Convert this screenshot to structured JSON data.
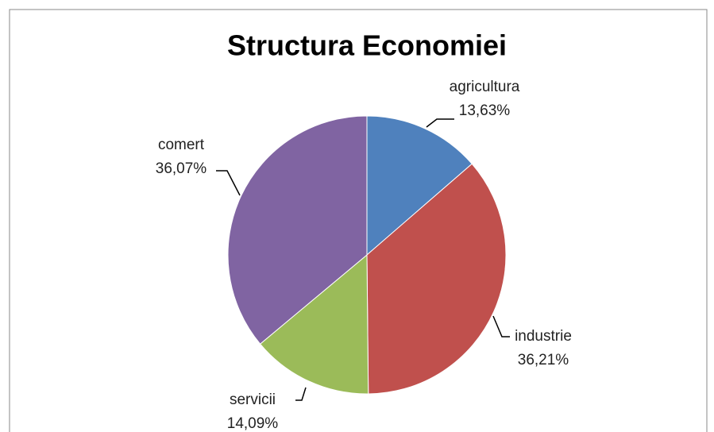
{
  "chart_data": {
    "type": "pie",
    "title": "Structura Economiei",
    "categories": [
      "agricultura",
      "industrie",
      "servicii",
      "comert"
    ],
    "values": [
      13.63,
      36.21,
      14.09,
      36.07
    ],
    "value_labels": [
      "13,63%",
      "36,21%",
      "14,09%",
      "36,07%"
    ],
    "colors": [
      "#4f81bd",
      "#c0504d",
      "#9bbb59",
      "#8064a2"
    ]
  }
}
